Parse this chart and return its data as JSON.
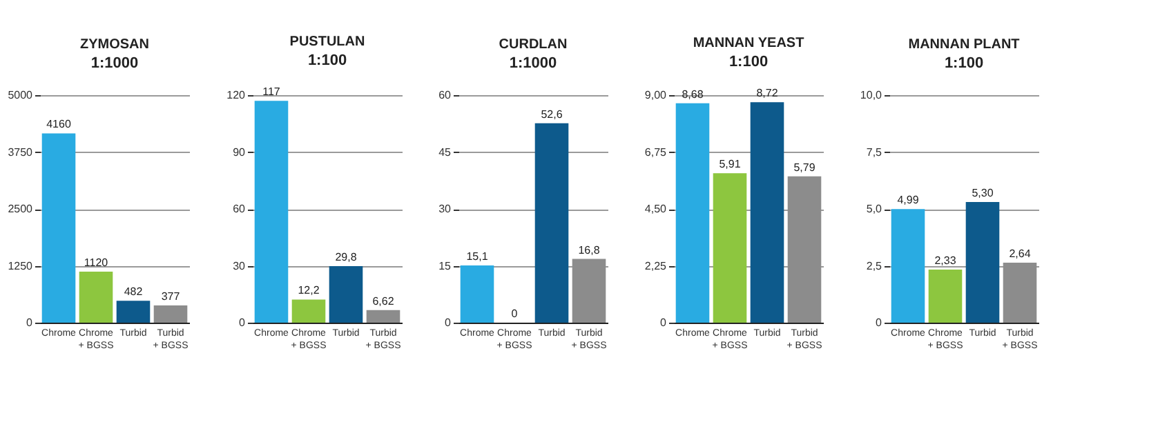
{
  "chart_data": [
    {
      "type": "bar",
      "title": "ZYMOSAN",
      "subtitle": "1:1000",
      "categories": [
        "Chrome",
        "Chrome + BGSS",
        "Turbid",
        "Turbid + BGSS"
      ],
      "values": [
        4160,
        1120,
        482,
        377
      ],
      "colors": [
        "#29abe2",
        "#8dc63f",
        "#0d5a8c",
        "#8c8c8c"
      ],
      "value_labels": [
        "4160",
        "1120",
        "482",
        "377"
      ],
      "ylim": [
        0,
        5000
      ],
      "yticks": [
        0,
        1250,
        2500,
        3750,
        5000
      ],
      "grid": "y"
    },
    {
      "type": "bar",
      "title": "PUSTULAN",
      "subtitle": "1:100",
      "categories": [
        "Chrome",
        "Chrome + BGSS",
        "Turbid",
        "Turbid + BGSS"
      ],
      "values": [
        117,
        12.2,
        29.8,
        6.62
      ],
      "colors": [
        "#29abe2",
        "#8dc63f",
        "#0d5a8c",
        "#8c8c8c"
      ],
      "value_labels": [
        "117",
        "12,2",
        "29,8",
        "6,62"
      ],
      "ylim": [
        0,
        120
      ],
      "yticks": [
        0,
        30,
        60,
        90,
        120
      ],
      "grid": "y"
    },
    {
      "type": "bar",
      "title": "CURDLAN",
      "subtitle": "1:1000",
      "categories": [
        "Chrome",
        "Chrome + BGSS",
        "Turbid",
        "Turbid + BGSS"
      ],
      "values": [
        15.1,
        0,
        52.6,
        16.8
      ],
      "colors": [
        "#29abe2",
        "#8dc63f",
        "#0d5a8c",
        "#8c8c8c"
      ],
      "value_labels": [
        "15,1",
        "0",
        "52,6",
        "16,8"
      ],
      "ylim": [
        0,
        60
      ],
      "yticks": [
        0,
        15,
        30,
        45,
        60
      ],
      "grid": "y"
    },
    {
      "type": "bar",
      "title": "MANNAN YEAST",
      "subtitle": "1:100",
      "categories": [
        "Chrome",
        "Chrome + BGSS",
        "Turbid",
        "Turbid + BGSS"
      ],
      "values": [
        8.68,
        5.91,
        8.72,
        5.79
      ],
      "colors": [
        "#29abe2",
        "#8dc63f",
        "#0d5a8c",
        "#8c8c8c"
      ],
      "value_labels": [
        "8,68",
        "5,91",
        "8,72",
        "5,79"
      ],
      "ylim": [
        0,
        9
      ],
      "yticks": [
        0,
        {
          "value": 2.25,
          "label": "2,25"
        },
        {
          "value": 4.5,
          "label": "4,50"
        },
        {
          "value": 6.75,
          "label": "6,75"
        },
        {
          "value": 9,
          "label": "9,00"
        }
      ],
      "grid": "y"
    },
    {
      "type": "bar",
      "title": "MANNAN PLANT",
      "subtitle": "1:100",
      "categories": [
        "Chrome",
        "Chrome + BGSS",
        "Turbid",
        "Turbid + BGSS"
      ],
      "values": [
        4.99,
        2.33,
        5.3,
        2.64
      ],
      "colors": [
        "#29abe2",
        "#8dc63f",
        "#0d5a8c",
        "#8c8c8c"
      ],
      "value_labels": [
        "4,99",
        "2,33",
        "5,30",
        "2,64"
      ],
      "ylim": [
        0,
        10
      ],
      "yticks": [
        0,
        {
          "value": 2.5,
          "label": "2,5"
        },
        {
          "value": 5,
          "label": "5,0"
        },
        {
          "value": 7.5,
          "label": "7,5"
        },
        {
          "value": 10,
          "label": "10,0"
        }
      ],
      "grid": "y"
    }
  ]
}
